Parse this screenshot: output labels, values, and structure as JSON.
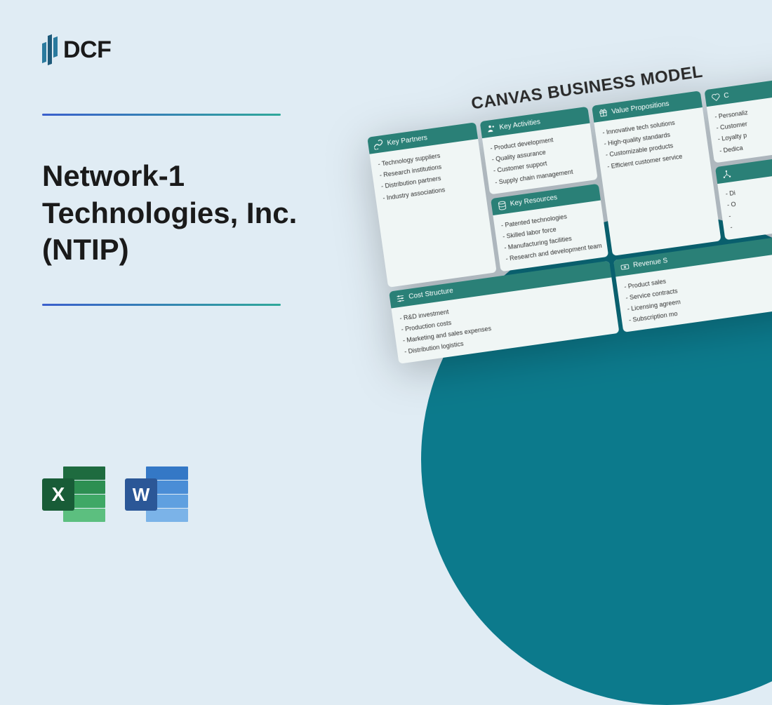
{
  "logo_text": "DCF",
  "main_title": "Network-1 Technologies, Inc. (NTIP)",
  "canvas_title": "CANVAS BUSINESS MODEL",
  "colors": {
    "background": "#e0ecf4",
    "circle": "#0c7a8c",
    "card_header": "#2a8077",
    "card_body": "#f0f6f5",
    "divider_start": "#3a5fcc",
    "divider_end": "#2fa89a",
    "excel_badge": "#185c37",
    "word_badge": "#2b5797",
    "text_dark": "#1a1a1a"
  },
  "app_icons": {
    "excel_letter": "X",
    "word_letter": "W"
  },
  "canvas": {
    "key_partners": {
      "title": "Key Partners",
      "items": [
        "- Technology suppliers",
        "- Research institutions",
        "- Distribution partners",
        "- Industry associations"
      ]
    },
    "key_activities": {
      "title": "Key Activities",
      "items": [
        "- Product development",
        "- Quality assurance",
        "- Customer support",
        "- Supply chain management"
      ]
    },
    "key_resources": {
      "title": "Key Resources",
      "items": [
        "- Patented technologies",
        "- Skilled labor force",
        "- Manufacturing facilities",
        "- Research and development team"
      ]
    },
    "value_propositions": {
      "title": "Value Propositions",
      "items": [
        "- Innovative tech solutions",
        "- High-quality standards",
        "- Customizable products",
        "- Efficient customer service"
      ]
    },
    "customer_relationships": {
      "title": "C",
      "items": [
        "- Personaliz",
        "- Customer",
        "- Loyalty p",
        "- Dedica"
      ]
    },
    "channels": {
      "title": "",
      "items": [
        "- Di",
        "- O",
        "-",
        "-"
      ]
    },
    "cost_structure": {
      "title": "Cost Structure",
      "items": [
        "- R&D investment",
        "- Production costs",
        "- Marketing and sales expenses",
        "- Distribution logistics"
      ]
    },
    "revenue_streams": {
      "title": "Revenue S",
      "items": [
        "- Product sales",
        "- Service contracts",
        "- Licensing agreem",
        "- Subscription mo"
      ]
    }
  }
}
